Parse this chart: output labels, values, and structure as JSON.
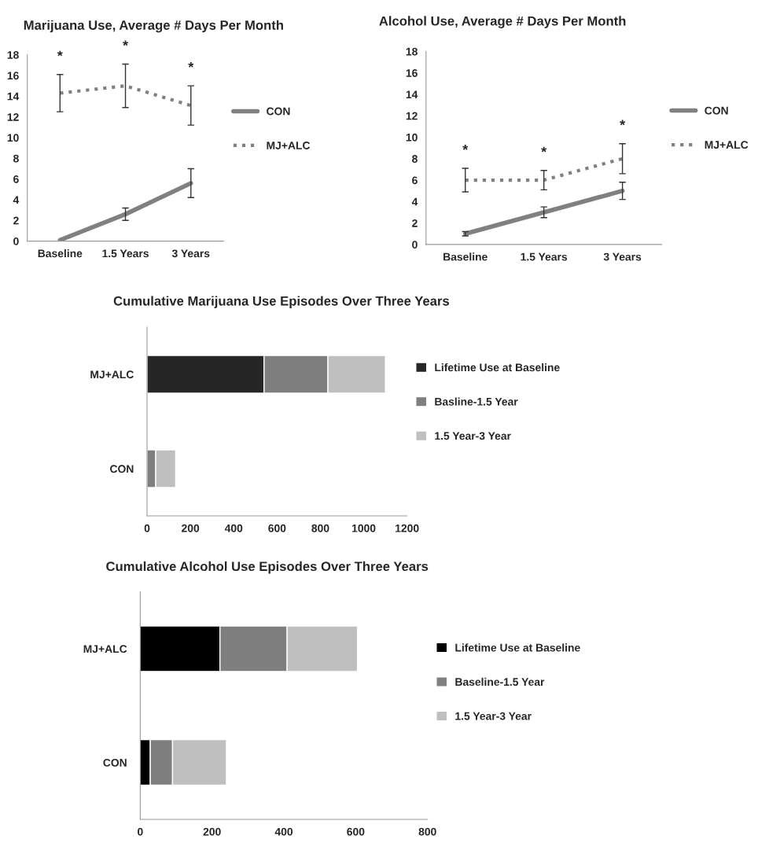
{
  "chart_data": [
    {
      "type": "line",
      "title": "Marijuana Use, Average # Days Per Month",
      "categories": [
        "Baseline",
        "1.5 Years",
        "3 Years"
      ],
      "ylim": [
        0,
        18
      ],
      "yticks": [
        0,
        2,
        4,
        6,
        8,
        10,
        12,
        14,
        16,
        18
      ],
      "grid": false,
      "legend": "right",
      "series": [
        {
          "name": "CON",
          "color": "#808080",
          "line_style": "solid",
          "values": [
            0.1,
            2.6,
            5.6
          ],
          "errors": [
            null,
            [
              2.0,
              3.2
            ],
            [
              4.2,
              7.0
            ]
          ]
        },
        {
          "name": "MJ+ALC",
          "color": "#808080",
          "line_style": "dotted",
          "values": [
            14.3,
            15.0,
            13.1
          ],
          "errors": [
            [
              12.5,
              16.1
            ],
            [
              12.9,
              17.1
            ],
            [
              11.2,
              15.0
            ]
          ]
        }
      ],
      "annotations": [
        "*",
        "*",
        "*"
      ]
    },
    {
      "type": "line",
      "title": "Alcohol Use, Average # Days Per Month",
      "categories": [
        "Baseline",
        "1.5 Years",
        "3 Years"
      ],
      "ylim": [
        0,
        18
      ],
      "yticks": [
        0,
        2,
        4,
        6,
        8,
        10,
        12,
        14,
        16,
        18
      ],
      "grid": false,
      "legend": "right",
      "series": [
        {
          "name": "CON",
          "color": "#808080",
          "line_style": "solid",
          "values": [
            1.0,
            3.0,
            5.0
          ],
          "errors": [
            [
              0.8,
              1.2
            ],
            [
              2.5,
              3.5
            ],
            [
              4.2,
              5.8
            ]
          ]
        },
        {
          "name": "MJ+ALC",
          "color": "#808080",
          "line_style": "dotted",
          "values": [
            6.0,
            6.0,
            8.0
          ],
          "errors": [
            [
              4.9,
              7.1
            ],
            [
              5.1,
              6.9
            ],
            [
              6.6,
              9.4
            ]
          ]
        }
      ],
      "annotations": [
        "*",
        "*",
        "*"
      ]
    },
    {
      "type": "bar",
      "orientation": "horizontal",
      "stacked": true,
      "title": "Cumulative Marijuana Use Episodes Over Three Years",
      "categories": [
        "MJ+ALC",
        "CON"
      ],
      "xlim": [
        0,
        1200
      ],
      "xticks": [
        0,
        200,
        400,
        600,
        800,
        1000,
        1200
      ],
      "grid": false,
      "legend": "right",
      "series": [
        {
          "name": "Lifetime Use at Baseline",
          "color": "#262626",
          "values": [
            540,
            0
          ]
        },
        {
          "name": "Basline-1.5 Year",
          "color": "#7f7f7f",
          "values": [
            295,
            40
          ]
        },
        {
          "name": "1.5 Year-3 Year",
          "color": "#bfbfbf",
          "values": [
            265,
            92
          ]
        }
      ]
    },
    {
      "type": "bar",
      "orientation": "horizontal",
      "stacked": true,
      "title": "Cumulative Alcohol Use Episodes Over Three Years",
      "categories": [
        "MJ+ALC",
        "CON"
      ],
      "xlim": [
        0,
        800
      ],
      "xticks": [
        0,
        200,
        400,
        600,
        800
      ],
      "grid": false,
      "legend": "right",
      "series": [
        {
          "name": "Lifetime Use at Baseline",
          "color": "#000000",
          "values": [
            222,
            28
          ]
        },
        {
          "name": "Baseline-1.5 Year",
          "color": "#7f7f7f",
          "values": [
            187,
            62
          ]
        },
        {
          "name": "1.5 Year-3 Year",
          "color": "#bfbfbf",
          "values": [
            196,
            150
          ]
        }
      ]
    }
  ]
}
